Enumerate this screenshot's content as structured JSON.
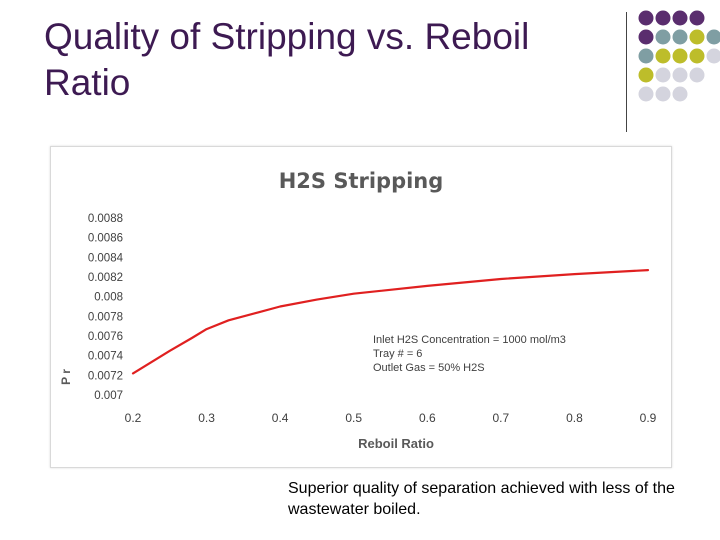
{
  "slide": {
    "title": "Quality of Stripping vs. Reboil Ratio",
    "caption": "Superior quality of separation achieved with less of the wastewater boiled."
  },
  "decoration": {
    "dot_colors": {
      "purple": "#5a2d6e",
      "teal": "#7f9ea3",
      "olive": "#bdbd2a",
      "gray": "#d4d4de"
    }
  },
  "chart_data": {
    "type": "line",
    "title": "H2S Stripping",
    "xlabel": "Reboil Ratio",
    "ylabel": "P r",
    "xlim": [
      0.2,
      0.9
    ],
    "ylim": [
      0.007,
      0.0088
    ],
    "x_ticks": [
      "0.2",
      "0.3",
      "0.4",
      "0.5",
      "0.6",
      "0.7",
      "0.8",
      "0.9"
    ],
    "y_ticks": [
      "0.007",
      "0.0072",
      "0.0074",
      "0.0076",
      "0.0078",
      "0.008",
      "0.0082",
      "0.0084",
      "0.0086",
      "0.0088"
    ],
    "grid": false,
    "series": [
      {
        "color": "#e02020",
        "x": [
          0.2,
          0.25,
          0.28,
          0.3,
          0.33,
          0.37,
          0.4,
          0.45,
          0.5,
          0.6,
          0.7,
          0.8,
          0.9
        ],
        "y": [
          0.00722,
          0.00745,
          0.00758,
          0.00767,
          0.00776,
          0.00784,
          0.0079,
          0.00797,
          0.00803,
          0.00811,
          0.00818,
          0.00823,
          0.00827
        ]
      }
    ],
    "annotation": [
      "Inlet H2S Concentration = 1000 mol/m3",
      "Tray # = 6",
      "Outlet Gas = 50% H2S"
    ]
  }
}
